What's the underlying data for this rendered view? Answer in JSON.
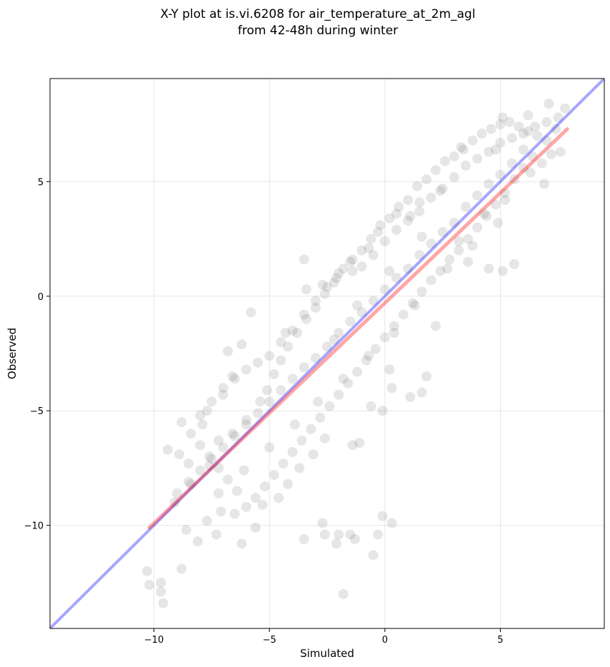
{
  "chart_data": {
    "type": "scatter",
    "title": [
      "X-Y plot at is.vi.6208 for air_temperature_at_2m_agl",
      "from 42-48h during winter"
    ],
    "xlabel": "Simulated",
    "ylabel": "Observed",
    "xlim": [
      -14.5,
      9.5
    ],
    "ylim": [
      -14.5,
      9.5
    ],
    "xticks": [
      -10,
      -5,
      0,
      5
    ],
    "yticks": [
      -10,
      -5,
      0,
      5
    ],
    "tick_labels": {
      "x": [
        "−10",
        "−5",
        "0",
        "5"
      ],
      "y": [
        "−10",
        "−5",
        "0",
        "5"
      ]
    },
    "grid": true,
    "point_color": "#333333",
    "series": [
      {
        "type": "scatter",
        "values": [
          [
            -10.3,
            -12.0
          ],
          [
            -10.2,
            -12.6
          ],
          [
            -9.7,
            -12.5
          ],
          [
            -9.7,
            -12.9
          ],
          [
            -9.6,
            -13.4
          ],
          [
            -1.8,
            -13.0
          ],
          [
            -8.8,
            -11.9
          ],
          [
            -0.5,
            -11.3
          ],
          [
            -0.3,
            -10.4
          ],
          [
            0.3,
            -9.9
          ],
          [
            -0.1,
            -9.6
          ],
          [
            -1.5,
            -10.4
          ],
          [
            -2.0,
            -10.4
          ],
          [
            -2.1,
            -10.8
          ],
          [
            -2.7,
            -9.9
          ],
          [
            -2.6,
            -10.4
          ],
          [
            -1.3,
            -10.6
          ],
          [
            -3.5,
            -10.6
          ],
          [
            -9.4,
            -6.7
          ],
          [
            -8.9,
            -6.9
          ],
          [
            -8.5,
            -7.3
          ],
          [
            -7.9,
            -5.6
          ],
          [
            -7.7,
            -5.0
          ],
          [
            -7.0,
            -4.3
          ],
          [
            -6.6,
            -3.5
          ],
          [
            -6.8,
            -2.4
          ],
          [
            -6.2,
            -2.1
          ],
          [
            -5.8,
            -0.7
          ],
          [
            -4.3,
            -1.6
          ],
          [
            -3.4,
            0.3
          ],
          [
            -3.5,
            1.6
          ],
          [
            -2.7,
            0.5
          ],
          [
            -2.1,
            0.8
          ],
          [
            -1.4,
            1.1
          ],
          [
            -0.7,
            2.1
          ],
          [
            -0.3,
            2.8
          ],
          [
            0.5,
            3.6
          ],
          [
            1.1,
            3.5
          ],
          [
            1.5,
            4.1
          ],
          [
            2.4,
            4.6
          ],
          [
            3.3,
            6.5
          ],
          [
            4.8,
            6.4
          ],
          [
            5.1,
            7.8
          ],
          [
            6.2,
            7.9
          ],
          [
            7.1,
            8.4
          ],
          [
            7.8,
            8.2
          ],
          [
            7.6,
            6.3
          ],
          [
            6.8,
            5.8
          ],
          [
            6.9,
            4.9
          ],
          [
            5.6,
            1.4
          ],
          [
            5.1,
            1.1
          ],
          [
            4.5,
            1.2
          ],
          [
            3.6,
            1.5
          ],
          [
            2.2,
            -1.3
          ],
          [
            1.8,
            -3.5
          ],
          [
            1.6,
            -4.2
          ],
          [
            1.1,
            -4.4
          ],
          [
            0.3,
            -4.0
          ],
          [
            0.2,
            -3.2
          ],
          [
            -0.1,
            -5.0
          ],
          [
            -0.6,
            -4.8
          ],
          [
            -1.1,
            -6.4
          ],
          [
            -1.4,
            -6.5
          ],
          [
            -2.6,
            -6.2
          ],
          [
            -3.1,
            -6.9
          ],
          [
            -3.7,
            -7.5
          ],
          [
            -4.2,
            -8.2
          ],
          [
            -4.6,
            -8.8
          ],
          [
            -5.3,
            -9.1
          ],
          [
            -5.6,
            -10.1
          ],
          [
            -6.2,
            -10.8
          ],
          [
            -6.5,
            -9.5
          ],
          [
            -7.1,
            -9.4
          ],
          [
            -7.3,
            -10.4
          ],
          [
            -7.7,
            -9.8
          ],
          [
            -8.1,
            -10.7
          ],
          [
            -8.6,
            -10.2
          ],
          [
            -9.1,
            -9.0
          ],
          [
            -8.4,
            -8.2
          ],
          [
            -7.6,
            -7.4
          ],
          [
            -7.2,
            -6.3
          ],
          [
            -6.6,
            -6.0
          ],
          [
            -6.0,
            -5.4
          ],
          [
            -5.4,
            -4.6
          ],
          [
            -5.1,
            -4.1
          ],
          [
            -4.8,
            -3.4
          ],
          [
            -4.5,
            -2.8
          ],
          [
            -4.2,
            -2.2
          ],
          [
            -3.8,
            -1.6
          ],
          [
            -3.4,
            -1.0
          ],
          [
            -3.0,
            -0.5
          ],
          [
            -2.6,
            0.1
          ],
          [
            -2.2,
            0.6
          ],
          [
            -1.8,
            1.2
          ],
          [
            -1.4,
            1.6
          ],
          [
            -1.0,
            2.0
          ],
          [
            -0.6,
            2.5
          ],
          [
            -0.2,
            3.1
          ],
          [
            0.2,
            3.4
          ],
          [
            0.6,
            3.9
          ],
          [
            1.0,
            4.2
          ],
          [
            1.4,
            4.8
          ],
          [
            1.8,
            5.1
          ],
          [
            2.2,
            5.5
          ],
          [
            2.6,
            5.9
          ],
          [
            3.0,
            6.1
          ],
          [
            3.4,
            6.4
          ],
          [
            3.8,
            6.8
          ],
          [
            4.2,
            7.1
          ],
          [
            4.6,
            7.3
          ],
          [
            5.0,
            7.5
          ],
          [
            5.4,
            7.6
          ],
          [
            5.8,
            7.4
          ],
          [
            6.2,
            7.2
          ],
          [
            6.6,
            7.0
          ],
          [
            7.0,
            6.8
          ],
          [
            7.4,
            7.3
          ],
          [
            6.4,
            6.1
          ],
          [
            6.0,
            5.6
          ],
          [
            5.6,
            5.1
          ],
          [
            5.2,
            4.5
          ],
          [
            4.8,
            4.0
          ],
          [
            4.4,
            3.5
          ],
          [
            4.0,
            3.0
          ],
          [
            3.6,
            2.5
          ],
          [
            3.2,
            2.0
          ],
          [
            2.8,
            1.6
          ],
          [
            2.4,
            1.1
          ],
          [
            2.0,
            0.7
          ],
          [
            1.6,
            0.2
          ],
          [
            1.2,
            -0.3
          ],
          [
            0.8,
            -0.8
          ],
          [
            0.4,
            -1.3
          ],
          [
            0.0,
            -1.8
          ],
          [
            -0.4,
            -2.3
          ],
          [
            -0.8,
            -2.8
          ],
          [
            -1.2,
            -3.3
          ],
          [
            -1.6,
            -3.8
          ],
          [
            -2.0,
            -4.3
          ],
          [
            -2.4,
            -4.8
          ],
          [
            -2.8,
            -5.3
          ],
          [
            -3.2,
            -5.8
          ],
          [
            -3.6,
            -6.3
          ],
          [
            -4.0,
            -6.8
          ],
          [
            -4.4,
            -7.3
          ],
          [
            -4.8,
            -7.8
          ],
          [
            -5.2,
            -8.3
          ],
          [
            -5.6,
            -8.8
          ],
          [
            -6.0,
            -9.2
          ],
          [
            -6.4,
            -8.5
          ],
          [
            -6.8,
            -8.0
          ],
          [
            -7.2,
            -7.5
          ],
          [
            -7.6,
            -7.0
          ],
          [
            -8.0,
            -6.5
          ],
          [
            -8.4,
            -6.0
          ],
          [
            -8.8,
            -5.5
          ],
          [
            -8.0,
            -5.2
          ],
          [
            -7.5,
            -4.6
          ],
          [
            -7.0,
            -4.0
          ],
          [
            -6.5,
            -3.6
          ],
          [
            -6.0,
            -3.2
          ],
          [
            -5.5,
            -2.9
          ],
          [
            -5.0,
            -2.6
          ],
          [
            -4.5,
            -2.0
          ],
          [
            -4.0,
            -1.5
          ],
          [
            -3.5,
            -0.8
          ],
          [
            -3.0,
            -0.2
          ],
          [
            -2.5,
            0.4
          ],
          [
            -2.0,
            1.0
          ],
          [
            -1.5,
            1.5
          ],
          [
            -1.0,
            1.3
          ],
          [
            -0.5,
            1.8
          ],
          [
            0.0,
            2.4
          ],
          [
            0.5,
            2.9
          ],
          [
            1.0,
            3.3
          ],
          [
            1.5,
            3.7
          ],
          [
            2.0,
            4.3
          ],
          [
            2.5,
            4.7
          ],
          [
            3.0,
            5.2
          ],
          [
            3.5,
            5.7
          ],
          [
            4.0,
            6.0
          ],
          [
            4.5,
            6.3
          ],
          [
            5.0,
            6.7
          ],
          [
            5.5,
            6.9
          ],
          [
            6.0,
            7.1
          ],
          [
            6.5,
            7.4
          ],
          [
            7.0,
            7.6
          ],
          [
            7.5,
            7.8
          ],
          [
            3.0,
            3.2
          ],
          [
            3.5,
            3.9
          ],
          [
            4.0,
            4.4
          ],
          [
            4.5,
            4.9
          ],
          [
            5.0,
            5.3
          ],
          [
            5.5,
            5.8
          ],
          [
            6.0,
            6.4
          ],
          [
            2.0,
            2.3
          ],
          [
            2.5,
            2.8
          ],
          [
            1.0,
            1.2
          ],
          [
            1.5,
            1.8
          ],
          [
            0.0,
            0.3
          ],
          [
            0.5,
            0.8
          ],
          [
            -1.0,
            -0.7
          ],
          [
            -0.5,
            -0.2
          ],
          [
            -2.0,
            -1.6
          ],
          [
            -1.5,
            -1.1
          ],
          [
            -3.0,
            -2.7
          ],
          [
            -2.5,
            -2.2
          ],
          [
            -4.0,
            -3.6
          ],
          [
            -3.5,
            -3.1
          ],
          [
            -5.0,
            -4.6
          ],
          [
            -4.5,
            -4.1
          ],
          [
            -6.0,
            -5.6
          ],
          [
            -5.5,
            -5.1
          ],
          [
            -7.0,
            -6.6
          ],
          [
            -6.5,
            -6.1
          ],
          [
            -8.0,
            -7.6
          ],
          [
            -7.5,
            -7.1
          ],
          [
            -9.0,
            -8.6
          ],
          [
            -8.5,
            -8.1
          ],
          [
            3.2,
            2.4
          ],
          [
            4.3,
            3.6
          ],
          [
            5.2,
            4.2
          ],
          [
            6.3,
            5.4
          ],
          [
            7.2,
            6.2
          ],
          [
            2.7,
            1.2
          ],
          [
            3.8,
            2.2
          ],
          [
            4.9,
            3.2
          ],
          [
            1.3,
            -0.4
          ],
          [
            0.4,
            -1.6
          ],
          [
            -0.7,
            -2.6
          ],
          [
            -1.8,
            -3.6
          ],
          [
            -2.9,
            -4.6
          ],
          [
            -3.9,
            -5.6
          ],
          [
            -5.0,
            -6.6
          ],
          [
            -6.1,
            -7.6
          ],
          [
            -7.2,
            -8.6
          ],
          [
            -2.2,
            -1.9
          ],
          [
            -1.2,
            -0.4
          ],
          [
            0.2,
            1.1
          ],
          [
            1.6,
            2.6
          ]
        ]
      }
    ],
    "lines": [
      {
        "name": "",
        "color": "#0000ff",
        "opacity": 0.35,
        "width": 4,
        "points": [
          [
            -14.5,
            -14.5
          ],
          [
            9.5,
            9.5
          ]
        ]
      },
      {
        "name": "",
        "color": "#ff0000",
        "opacity": 0.35,
        "width": 5,
        "points": [
          [
            -10.2,
            -10.1
          ],
          [
            7.9,
            7.3
          ]
        ]
      }
    ]
  }
}
